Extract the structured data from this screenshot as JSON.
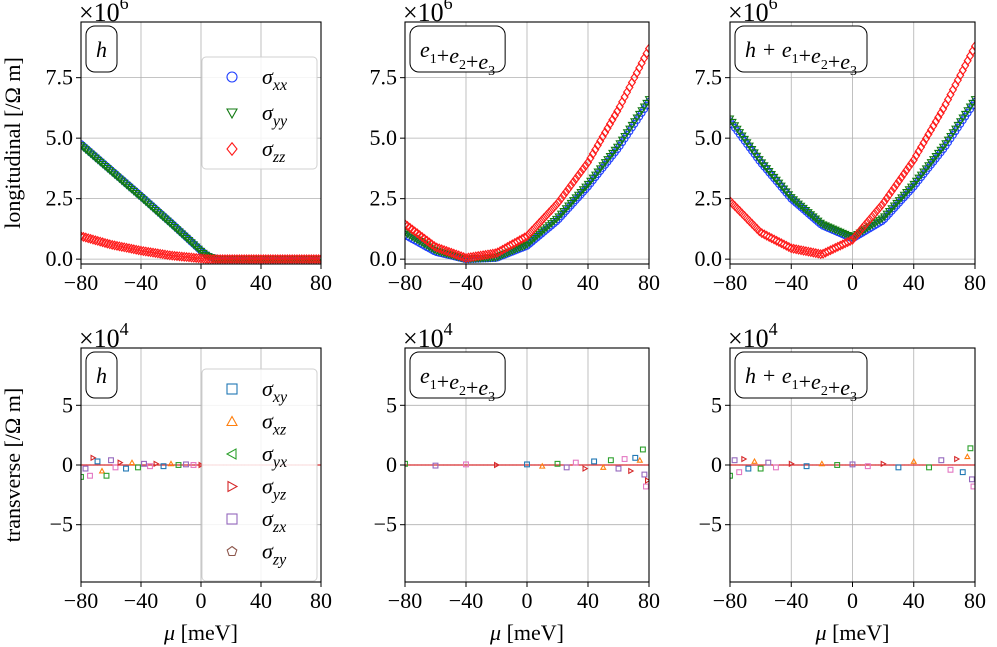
{
  "figure": {
    "shared_xlabel_italic": "μ",
    "shared_xlabel_unit": " [meV]",
    "row_ylabels": [
      "longitudinal [/Ω m]",
      "transverse [/Ω m]"
    ]
  },
  "colors": {
    "xx": "#1f3fff",
    "yy": "#127a12",
    "zz": "#ff1a1a",
    "xy": "#1f77b4",
    "xz": "#ff7f0e",
    "yx": "#2ca02c",
    "yz": "#d62728",
    "zx": "#9467bd",
    "zy": "#8c564b",
    "scatter_pink": "#e377c2"
  },
  "chart_data": [
    {
      "type": "scatter",
      "panel": "longitudinal-h",
      "title": "h",
      "multiplier_base": "×10",
      "multiplier_exp": "6",
      "xlabel": "",
      "ylabel": "longitudinal [/Ω m]",
      "xlim": [
        -80,
        80
      ],
      "ylim": [
        -0.2,
        9.8
      ],
      "xticks": [
        -80,
        -40,
        0,
        40,
        80
      ],
      "yticks": [
        0.0,
        2.5,
        5.0,
        7.5
      ],
      "ytick_labels": [
        "0.0",
        "2.5",
        "5.0",
        "7.5"
      ],
      "grid": true,
      "legend": {
        "placement": "top-right",
        "entries": [
          {
            "base": "σ",
            "sub": "xx",
            "marker": "circle",
            "color_key": "xx"
          },
          {
            "base": "σ",
            "sub": "yy",
            "marker": "triangle-down",
            "color_key": "yy"
          },
          {
            "base": "σ",
            "sub": "zz",
            "marker": "diamond",
            "color_key": "zz"
          }
        ]
      },
      "series": [
        {
          "name": "σxx",
          "marker": "circle",
          "color_key": "xx",
          "x": [
            -80,
            -40,
            -20,
            0,
            4,
            8,
            12,
            40,
            80
          ],
          "y": [
            4.75,
            2.6,
            1.5,
            0.35,
            0.15,
            0.05,
            0.0,
            0.0,
            0.0
          ]
        },
        {
          "name": "σyy",
          "marker": "triangle-down",
          "color_key": "yy",
          "x": [
            -80,
            -40,
            -20,
            0,
            4,
            8,
            12,
            40,
            80
          ],
          "y": [
            4.7,
            2.55,
            1.45,
            0.33,
            0.13,
            0.04,
            0.0,
            0.0,
            0.0
          ]
        },
        {
          "name": "σzz",
          "marker": "diamond",
          "color_key": "zz",
          "x": [
            -80,
            -60,
            -40,
            -20,
            0,
            6,
            12,
            40,
            80
          ],
          "y": [
            0.95,
            0.6,
            0.35,
            0.15,
            0.03,
            0.0,
            0.0,
            0.0,
            0.0
          ]
        }
      ]
    },
    {
      "type": "scatter",
      "panel": "longitudinal-e",
      "title": "e1+e2+e3",
      "title_parts": [
        "e",
        "1",
        "+",
        "e",
        "2",
        "+",
        "e",
        "3"
      ],
      "multiplier_base": "×10",
      "multiplier_exp": "6",
      "xlim": [
        -80,
        80
      ],
      "ylim": [
        -0.2,
        9.8
      ],
      "xticks": [
        -80,
        -40,
        0,
        40,
        80
      ],
      "yticks": [
        0.0,
        2.5,
        5.0,
        7.5
      ],
      "ytick_labels": [
        "0.0",
        "2.5",
        "5.0",
        "7.5"
      ],
      "grid": true,
      "series": [
        {
          "name": "σxx",
          "marker": "circle",
          "color_key": "xx",
          "x": [
            -80,
            -60,
            -40,
            -20,
            0,
            20,
            40,
            60,
            80
          ],
          "y": [
            1.0,
            0.3,
            0.0,
            0.05,
            0.55,
            1.6,
            3.0,
            4.6,
            6.5
          ]
        },
        {
          "name": "σyy",
          "marker": "triangle-down",
          "color_key": "yy",
          "x": [
            -80,
            -60,
            -40,
            -20,
            0,
            20,
            40,
            60,
            80
          ],
          "y": [
            1.1,
            0.35,
            0.0,
            0.07,
            0.6,
            1.7,
            3.1,
            4.7,
            6.6
          ]
        },
        {
          "name": "σzz",
          "marker": "diamond",
          "color_key": "zz",
          "x": [
            -80,
            -60,
            -40,
            -20,
            0,
            20,
            40,
            60,
            80
          ],
          "y": [
            1.45,
            0.5,
            0.05,
            0.25,
            0.95,
            2.3,
            4.0,
            6.2,
            8.7
          ]
        }
      ]
    },
    {
      "type": "scatter",
      "panel": "longitudinal-he",
      "title": "h+e1+e2+e3",
      "title_parts": [
        "h+e",
        "1",
        "+",
        "e",
        "2",
        "+",
        "e",
        "3"
      ],
      "multiplier_base": "×10",
      "multiplier_exp": "6",
      "xlim": [
        -80,
        80
      ],
      "ylim": [
        -0.2,
        9.8
      ],
      "xticks": [
        -80,
        -40,
        0,
        40,
        80
      ],
      "yticks": [
        0.0,
        2.5,
        5.0,
        7.5
      ],
      "ytick_labels": [
        "0.0",
        "2.5",
        "5.0",
        "7.5"
      ],
      "grid": true,
      "series": [
        {
          "name": "σxx",
          "marker": "circle",
          "color_key": "xx",
          "x": [
            -80,
            -60,
            -40,
            -20,
            0,
            20,
            40,
            60,
            80
          ],
          "y": [
            5.7,
            4.0,
            2.5,
            1.4,
            0.85,
            1.6,
            3.0,
            4.6,
            6.5
          ]
        },
        {
          "name": "σyy",
          "marker": "triangle-down",
          "color_key": "yy",
          "x": [
            -80,
            -60,
            -40,
            -20,
            0,
            20,
            40,
            60,
            80
          ],
          "y": [
            5.8,
            4.05,
            2.55,
            1.45,
            0.9,
            1.7,
            3.1,
            4.7,
            6.6
          ]
        },
        {
          "name": "σzz",
          "marker": "diamond",
          "color_key": "zz",
          "x": [
            -80,
            -60,
            -40,
            -20,
            0,
            20,
            40,
            60,
            80
          ],
          "y": [
            2.4,
            1.1,
            0.45,
            0.2,
            0.8,
            2.3,
            4.1,
            6.3,
            8.8
          ]
        }
      ]
    },
    {
      "type": "scatter",
      "panel": "transverse-h",
      "title": "h",
      "multiplier_base": "×10",
      "multiplier_exp": "4",
      "xlabel": "μ [meV]",
      "ylabel": "transverse [/Ω m]",
      "xlim": [
        -80,
        80
      ],
      "ylim": [
        -9.8,
        9.8
      ],
      "xticks": [
        -80,
        -40,
        0,
        40,
        80
      ],
      "yticks": [
        -5,
        0,
        5
      ],
      "ytick_labels": [
        "−5",
        "0",
        "5"
      ],
      "grid": true,
      "legend": {
        "placement": "left-of-center, full height",
        "entries": [
          {
            "base": "σ",
            "sub": "xy",
            "marker": "square",
            "color_key": "xy"
          },
          {
            "base": "σ",
            "sub": "xz",
            "marker": "triangle-up",
            "color_key": "xz"
          },
          {
            "base": "σ",
            "sub": "yx",
            "marker": "triangle-left",
            "color_key": "yx"
          },
          {
            "base": "σ",
            "sub": "yz",
            "marker": "triangle-right",
            "color_key": "yz"
          },
          {
            "base": "σ",
            "sub": "zx",
            "marker": "square",
            "color_key": "zx"
          },
          {
            "base": "σ",
            "sub": "zy",
            "marker": "pentagon",
            "color_key": "zy"
          }
        ]
      },
      "noise": [
        {
          "x": -80,
          "y": -1.0
        },
        {
          "x": -77,
          "y": -0.3
        },
        {
          "x": -74,
          "y": -0.9
        },
        {
          "x": -72,
          "y": 0.6
        },
        {
          "x": -69,
          "y": 0.3
        },
        {
          "x": -66,
          "y": -0.5
        },
        {
          "x": -63,
          "y": -0.9
        },
        {
          "x": -60,
          "y": 0.4
        },
        {
          "x": -57,
          "y": -0.2
        },
        {
          "x": -54,
          "y": 0.2
        },
        {
          "x": -50,
          "y": -0.3
        },
        {
          "x": -46,
          "y": 0.2
        },
        {
          "x": -42,
          "y": -0.2
        },
        {
          "x": -38,
          "y": 0.1
        },
        {
          "x": -34,
          "y": -0.1
        },
        {
          "x": -30,
          "y": 0.1
        },
        {
          "x": -25,
          "y": -0.1
        },
        {
          "x": -20,
          "y": 0.1
        },
        {
          "x": -15,
          "y": 0.0
        },
        {
          "x": -10,
          "y": 0.05
        },
        {
          "x": -5,
          "y": 0.0
        },
        {
          "x": 0,
          "y": 0.0
        }
      ]
    },
    {
      "type": "scatter",
      "panel": "transverse-e",
      "title": "e1+e2+e3",
      "title_parts": [
        "e",
        "1",
        "+",
        "e",
        "2",
        "+",
        "e",
        "3"
      ],
      "multiplier_base": "×10",
      "multiplier_exp": "4",
      "xlabel": "μ [meV]",
      "xlim": [
        -80,
        80
      ],
      "ylim": [
        -9.8,
        9.8
      ],
      "xticks": [
        -80,
        -40,
        0,
        40,
        80
      ],
      "yticks": [
        -5,
        0,
        5
      ],
      "ytick_labels": [
        "−5",
        "0",
        "5"
      ],
      "grid": true,
      "noise": [
        {
          "x": -80,
          "y": 0.1
        },
        {
          "x": -60,
          "y": -0.05
        },
        {
          "x": -40,
          "y": 0.05
        },
        {
          "x": -20,
          "y": 0.0
        },
        {
          "x": 0,
          "y": 0.05
        },
        {
          "x": 10,
          "y": -0.1
        },
        {
          "x": 20,
          "y": 0.1
        },
        {
          "x": 26,
          "y": -0.2
        },
        {
          "x": 32,
          "y": 0.2
        },
        {
          "x": 38,
          "y": -0.3
        },
        {
          "x": 44,
          "y": 0.3
        },
        {
          "x": 50,
          "y": -0.2
        },
        {
          "x": 55,
          "y": 0.4
        },
        {
          "x": 60,
          "y": -0.3
        },
        {
          "x": 64,
          "y": 0.5
        },
        {
          "x": 68,
          "y": -0.5
        },
        {
          "x": 71,
          "y": 0.6
        },
        {
          "x": 74,
          "y": 0.4
        },
        {
          "x": 76,
          "y": 1.3
        },
        {
          "x": 77,
          "y": -0.8
        },
        {
          "x": 78,
          "y": -1.8
        },
        {
          "x": 79,
          "y": -1.3
        }
      ]
    },
    {
      "type": "scatter",
      "panel": "transverse-he",
      "title": "h+e1+e2+e3",
      "title_parts": [
        "h+e",
        "1",
        "+",
        "e",
        "2",
        "+",
        "e",
        "3"
      ],
      "multiplier_base": "×10",
      "multiplier_exp": "4",
      "xlabel": "μ [meV]",
      "xlim": [
        -80,
        80
      ],
      "ylim": [
        -9.8,
        9.8
      ],
      "xticks": [
        -80,
        -40,
        0,
        40,
        80
      ],
      "yticks": [
        -5,
        0,
        5
      ],
      "ytick_labels": [
        "−5",
        "0",
        "5"
      ],
      "grid": true,
      "noise": [
        {
          "x": -80,
          "y": -0.9
        },
        {
          "x": -77,
          "y": 0.4
        },
        {
          "x": -74,
          "y": -0.6
        },
        {
          "x": -71,
          "y": 0.5
        },
        {
          "x": -68,
          "y": -0.3
        },
        {
          "x": -64,
          "y": 0.3
        },
        {
          "x": -60,
          "y": -0.3
        },
        {
          "x": -55,
          "y": 0.2
        },
        {
          "x": -50,
          "y": -0.2
        },
        {
          "x": -40,
          "y": 0.1
        },
        {
          "x": -30,
          "y": -0.1
        },
        {
          "x": -20,
          "y": 0.1
        },
        {
          "x": -10,
          "y": 0.0
        },
        {
          "x": 0,
          "y": 0.05
        },
        {
          "x": 10,
          "y": -0.1
        },
        {
          "x": 20,
          "y": 0.1
        },
        {
          "x": 30,
          "y": -0.2
        },
        {
          "x": 40,
          "y": 0.3
        },
        {
          "x": 50,
          "y": -0.2
        },
        {
          "x": 58,
          "y": 0.4
        },
        {
          "x": 64,
          "y": -0.4
        },
        {
          "x": 68,
          "y": 0.5
        },
        {
          "x": 72,
          "y": -0.6
        },
        {
          "x": 75,
          "y": 0.7
        },
        {
          "x": 77,
          "y": 1.4
        },
        {
          "x": 78,
          "y": -1.2
        },
        {
          "x": 79,
          "y": -1.8
        }
      ]
    }
  ]
}
